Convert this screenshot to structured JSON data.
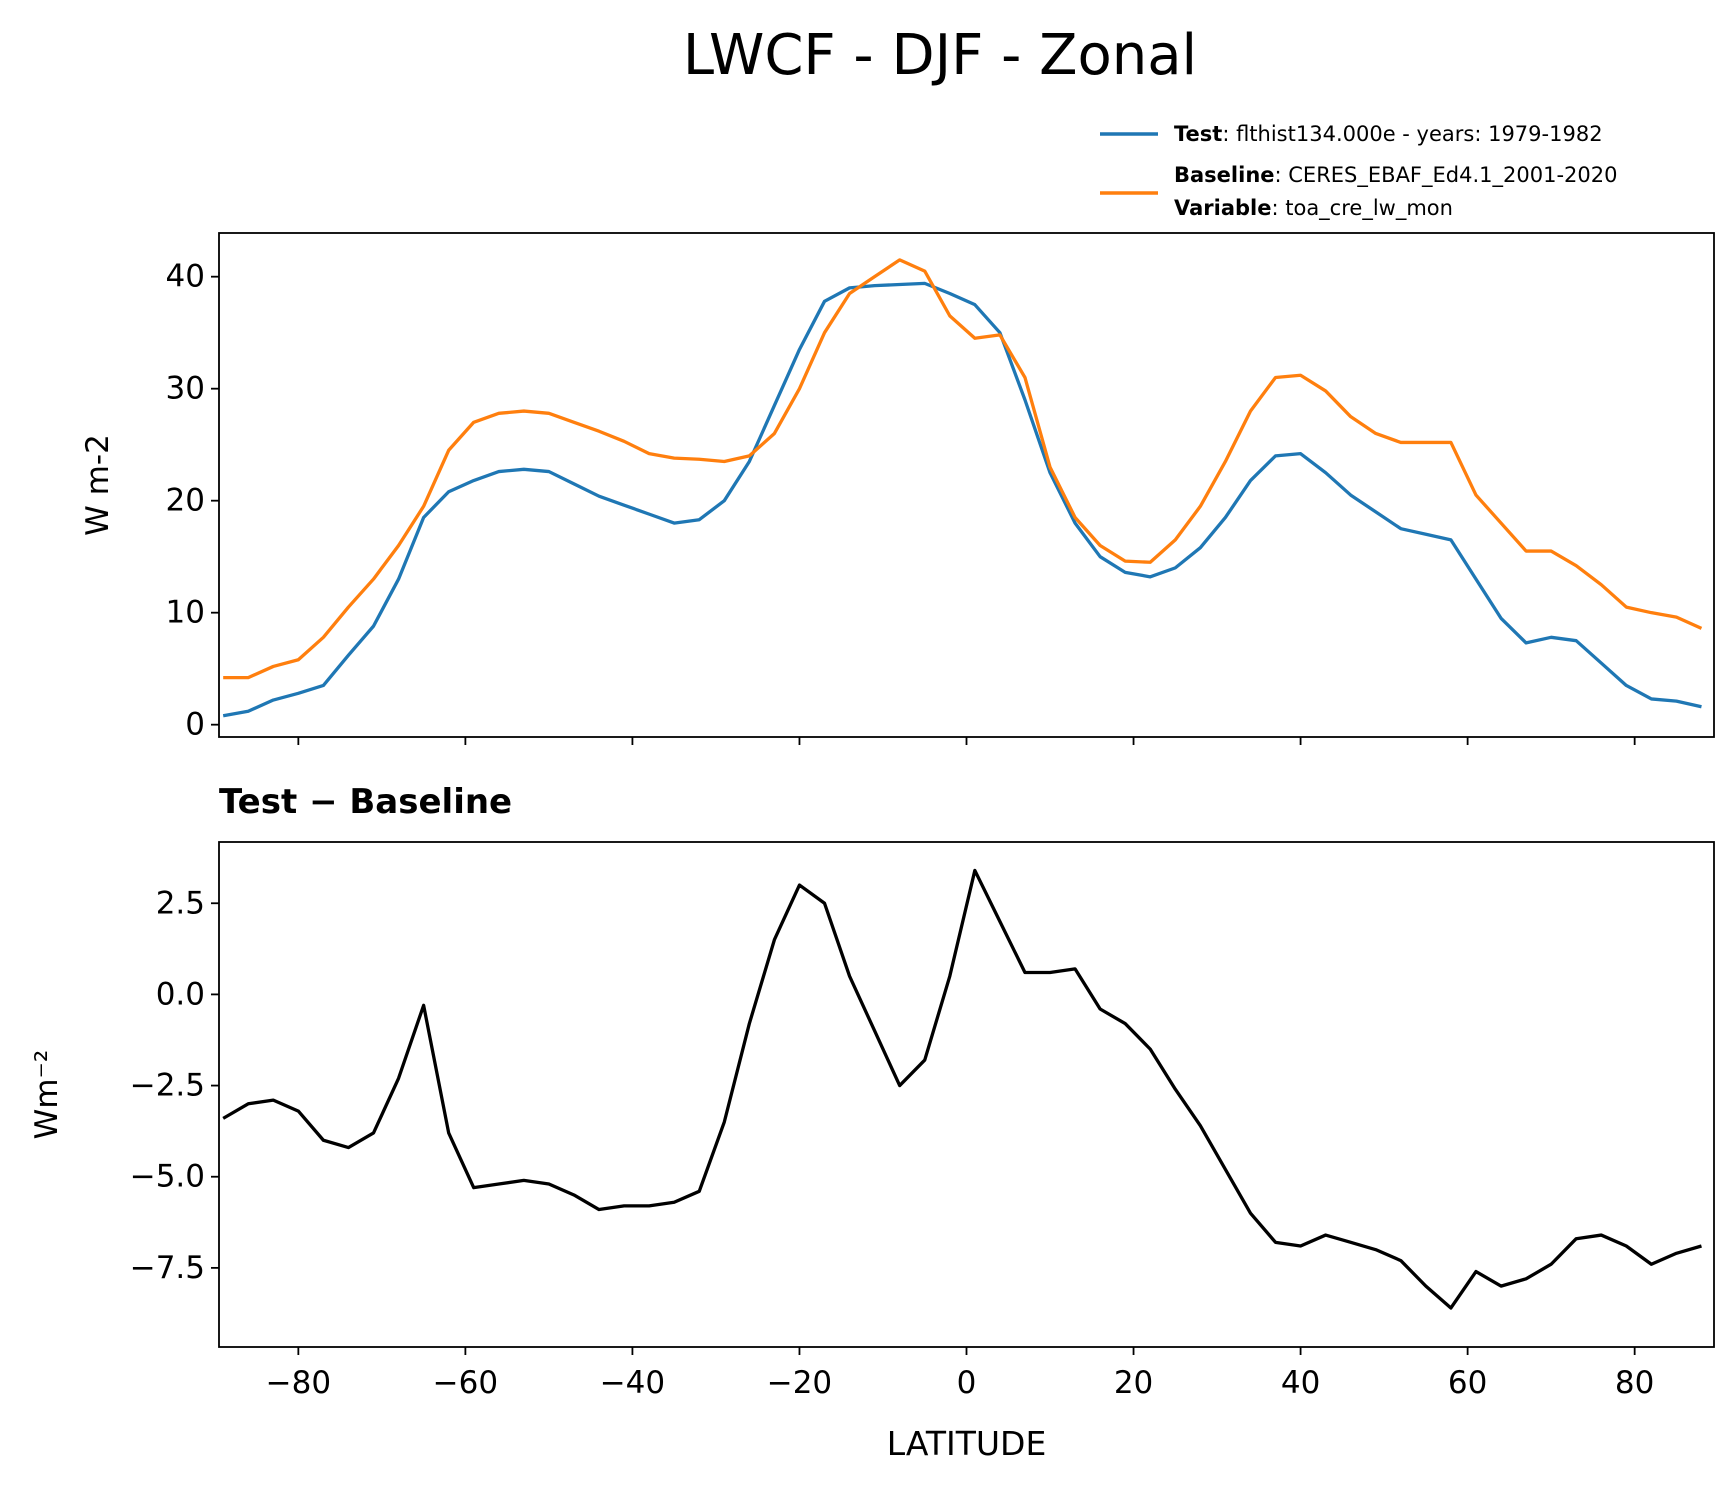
{
  "chart_data": [
    {
      "type": "line",
      "title": "LWCF - DJF - Zonal",
      "ylabel": "W m-2",
      "x": [
        -89,
        -86,
        -83,
        -80,
        -77,
        -74,
        -71,
        -68,
        -65,
        -62,
        -59,
        -56,
        -53,
        -50,
        -47,
        -44,
        -41,
        -38,
        -35,
        -32,
        -29,
        -26,
        -23,
        -20,
        -17,
        -14,
        -11,
        -8,
        -5,
        -2,
        1,
        4,
        7,
        10,
        13,
        16,
        19,
        22,
        25,
        28,
        31,
        34,
        37,
        40,
        43,
        46,
        49,
        52,
        55,
        58,
        61,
        64,
        67,
        70,
        73,
        76,
        79,
        82,
        85,
        88
      ],
      "xlim": [
        -89.5,
        89.5
      ],
      "xticks": [
        -80,
        -60,
        -40,
        -20,
        0,
        20,
        40,
        60,
        80
      ],
      "xtick_labels": false,
      "ylim": [
        -1.1,
        43.9
      ],
      "yticks": [
        0,
        10,
        20,
        30,
        40
      ],
      "series": [
        {
          "name": "Test",
          "label": ": flthist134.000e - years: 1979-1982",
          "color": "#1f77b4",
          "values": [
            0.8,
            1.2,
            2.2,
            2.8,
            3.5,
            6.2,
            8.8,
            13,
            18.5,
            20.8,
            21.8,
            22.6,
            22.8,
            22.6,
            21.5,
            20.4,
            19.6,
            18.8,
            18.0,
            18.3,
            20,
            23.5,
            28.5,
            33.5,
            37.8,
            39,
            39.2,
            39.3,
            39.4,
            38.5,
            37.5,
            35,
            29,
            22.5,
            18,
            15,
            13.6,
            13.2,
            14,
            15.8,
            18.5,
            21.8,
            24,
            24.2,
            22.5,
            20.5,
            19,
            17.5,
            17,
            16.5,
            13,
            9.5,
            7.3,
            7.8,
            7.5,
            5.5,
            3.5,
            2.3,
            2.1,
            1.6
          ]
        },
        {
          "name": "Baseline",
          "label": ": CERES_EBAF_Ed4.1_2001-2020",
          "color": "#ff7f0e",
          "values": [
            4.2,
            4.2,
            5.2,
            5.8,
            7.8,
            10.5,
            13,
            16,
            19.5,
            24.5,
            27,
            27.8,
            28,
            27.8,
            27,
            26.2,
            25.3,
            24.2,
            23.8,
            23.7,
            23.5,
            24,
            26,
            30,
            35,
            38.5,
            40,
            41.5,
            40.5,
            36.5,
            34.5,
            34.8,
            31,
            23,
            18.5,
            16,
            14.6,
            14.5,
            16.5,
            19.5,
            23.5,
            28,
            31,
            31.2,
            29.8,
            27.5,
            26,
            25.2,
            25.2,
            25.2,
            20.5,
            18,
            15.5,
            15.5,
            14.2,
            12.5,
            10.5,
            10,
            9.6,
            8.6
          ]
        }
      ],
      "variable": {
        "name": "Variable",
        "label": ": toa_cre_lw_mon"
      }
    },
    {
      "type": "line",
      "title": "Test − Baseline",
      "xlabel": "LATITUDE",
      "ylabel": "Wm⁻²",
      "x": [
        -89,
        -86,
        -83,
        -80,
        -77,
        -74,
        -71,
        -68,
        -65,
        -62,
        -59,
        -56,
        -53,
        -50,
        -47,
        -44,
        -41,
        -38,
        -35,
        -32,
        -29,
        -26,
        -23,
        -20,
        -17,
        -14,
        -11,
        -8,
        -5,
        -2,
        1,
        4,
        7,
        10,
        13,
        16,
        19,
        22,
        25,
        28,
        31,
        34,
        37,
        40,
        43,
        46,
        49,
        52,
        55,
        58,
        61,
        64,
        67,
        70,
        73,
        76,
        79,
        82,
        85,
        88
      ],
      "xlim": [
        -89.5,
        89.5
      ],
      "xticks": [
        {
          "value": -80,
          "label": "−80"
        },
        {
          "value": -60,
          "label": "−60"
        },
        {
          "value": -40,
          "label": "−40"
        },
        {
          "value": -20,
          "label": "−20"
        },
        0,
        20,
        40,
        60,
        80
      ],
      "ylim": [
        -9.67,
        4.18
      ],
      "yticks": [
        2.5,
        {
          "value": 0,
          "label": "0.0"
        },
        {
          "value": -2.5,
          "label": "−2.5"
        },
        {
          "value": -5,
          "label": "−5.0"
        },
        {
          "value": -7.5,
          "label": "−7.5"
        }
      ],
      "color": "#000000",
      "values": [
        -3.4,
        -3.0,
        -2.9,
        -3.2,
        -4.0,
        -4.2,
        -3.8,
        -2.3,
        -0.3,
        -3.8,
        -5.3,
        -5.2,
        -5.1,
        -5.2,
        -5.5,
        -5.9,
        -5.8,
        -5.8,
        -5.7,
        -5.4,
        -3.5,
        -0.8,
        1.5,
        3.0,
        2.5,
        0.5,
        -1.0,
        -2.5,
        -1.8,
        0.5,
        3.4,
        2.0,
        0.6,
        0.6,
        0.7,
        -0.4,
        -0.8,
        -1.5,
        -2.6,
        -3.6,
        -4.8,
        -6.0,
        -6.8,
        -6.9,
        -6.6,
        -6.8,
        -7.0,
        -7.3,
        -8.0,
        -8.6,
        -7.6,
        -8.0,
        -7.8,
        -7.4,
        -6.7,
        -6.6,
        -6.9,
        -7.4,
        -7.1,
        -6.9
      ]
    }
  ]
}
